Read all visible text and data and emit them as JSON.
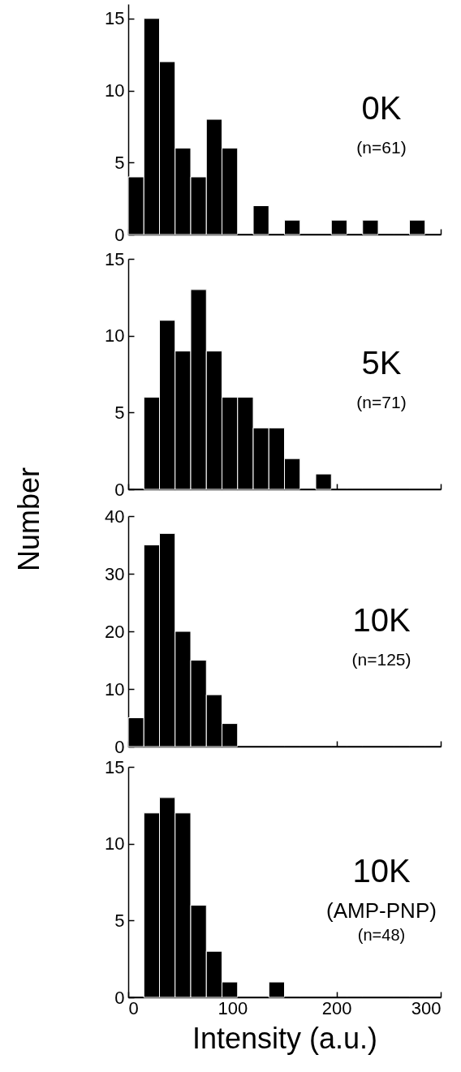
{
  "chart_data": [
    {
      "type": "histogram",
      "bins": [
        0,
        15,
        30,
        45,
        60,
        75,
        90,
        105,
        120,
        135,
        150,
        165,
        180,
        195,
        210,
        225,
        240,
        255,
        270,
        285,
        300
      ],
      "values": [
        4,
        15,
        12,
        6,
        4,
        8,
        6,
        0,
        2,
        0,
        1,
        0,
        0,
        1,
        0,
        1,
        0,
        0,
        1,
        0
      ],
      "color": "#000000",
      "xlim": [
        0,
        300
      ],
      "xticks": [
        0,
        100,
        200,
        300
      ],
      "ylim": [
        0,
        16
      ],
      "yticks": [
        0,
        5,
        10,
        15
      ],
      "tick_labels": "y",
      "annotations": [
        "0K",
        "(n=61)"
      ]
    },
    {
      "type": "histogram",
      "bins": [
        0,
        15,
        30,
        45,
        60,
        75,
        90,
        105,
        120,
        135,
        150,
        165,
        180,
        195,
        210,
        225,
        240,
        255,
        270,
        285,
        300
      ],
      "values": [
        0,
        6,
        11,
        9,
        13,
        9,
        6,
        6,
        4,
        4,
        2,
        0,
        1,
        0,
        0,
        0,
        0,
        0,
        0,
        0
      ],
      "color": "#000000",
      "xlim": [
        0,
        300
      ],
      "xticks": [
        0,
        100,
        200,
        300
      ],
      "ylim": [
        0,
        15
      ],
      "yticks": [
        0,
        5,
        10,
        15
      ],
      "tick_labels": "y",
      "ylabel": "Number",
      "annotations": [
        "5K",
        "(n=71)"
      ]
    },
    {
      "type": "histogram",
      "bins": [
        0,
        15,
        30,
        45,
        60,
        75,
        90,
        105,
        120,
        135,
        150,
        165,
        180,
        195,
        210,
        225,
        240,
        255,
        270,
        285,
        300
      ],
      "values": [
        5,
        35,
        37,
        20,
        15,
        9,
        4,
        0,
        0,
        0,
        0,
        0,
        0,
        0,
        0,
        0,
        0,
        0,
        0,
        0
      ],
      "color": "#000000",
      "xlim": [
        0,
        300
      ],
      "xticks": [
        0,
        100,
        200,
        300
      ],
      "ylim": [
        0,
        40
      ],
      "yticks": [
        0,
        10,
        20,
        30,
        40
      ],
      "tick_labels": "y",
      "annotations": [
        "10K",
        "(n=125)"
      ]
    },
    {
      "type": "histogram",
      "bins": [
        0,
        15,
        30,
        45,
        60,
        75,
        90,
        105,
        120,
        135,
        150,
        165,
        180,
        195,
        210,
        225,
        240,
        255,
        270,
        285,
        300
      ],
      "values": [
        0,
        12,
        13,
        12,
        6,
        3,
        1,
        0,
        0,
        1,
        0,
        0,
        0,
        0,
        0,
        0,
        0,
        0,
        0,
        0
      ],
      "color": "#000000",
      "xlim": [
        0,
        300
      ],
      "xticks": [
        0,
        100,
        200,
        300
      ],
      "ylim": [
        0,
        15
      ],
      "yticks": [
        0,
        5,
        10,
        15
      ],
      "xlabel": "Intensity (a.u.)",
      "annotations": [
        "10K",
        "(AMP-PNP)",
        "(n=48)"
      ]
    }
  ]
}
